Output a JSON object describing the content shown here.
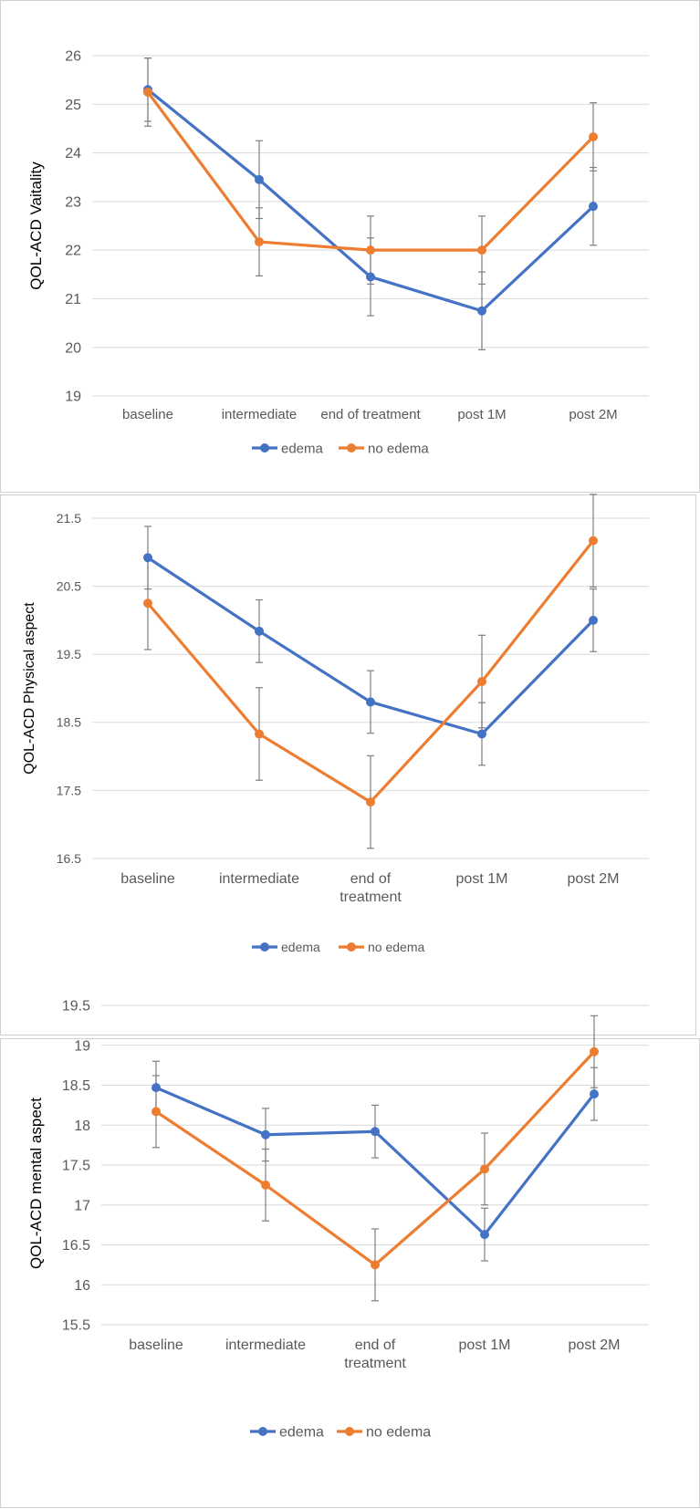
{
  "chart_data": [
    {
      "type": "line",
      "ylabel": "QOL-ACD  Vaitality",
      "categories": [
        [
          "baseline"
        ],
        [
          "intermediate"
        ],
        [
          "end of treatment"
        ],
        [
          "post 1M"
        ],
        [
          "post 2M"
        ]
      ],
      "ylim": [
        19,
        26
      ],
      "yticks": [
        19,
        20,
        21,
        22,
        23,
        24,
        25,
        26
      ],
      "ytick_labels": [
        "19",
        "20",
        "21",
        "22",
        "23",
        "24",
        "25",
        "26"
      ],
      "grid": true,
      "legend_position": "bottom",
      "series": [
        {
          "name": "edema",
          "color": "#4472C4",
          "values": [
            25.3,
            23.45,
            21.45,
            20.75,
            22.9
          ],
          "errors": [
            0.65,
            0.8,
            0.8,
            0.8,
            0.8
          ]
        },
        {
          "name": "no edema",
          "color": "#ED7D31",
          "values": [
            25.25,
            22.17,
            22.0,
            22.0,
            24.33
          ],
          "errors": [
            0.7,
            0.7,
            0.7,
            0.7,
            0.7
          ]
        }
      ]
    },
    {
      "type": "line",
      "ylabel": "QOL-ACD Physical aspect",
      "categories": [
        [
          "baseline"
        ],
        [
          "intermediate"
        ],
        [
          "end of",
          "treatment"
        ],
        [
          "post 1M"
        ],
        [
          "post 2M"
        ]
      ],
      "ylim": [
        16.5,
        21.5
      ],
      "yticks": [
        16.5,
        17.5,
        18.5,
        19.5,
        20.5,
        21.5
      ],
      "ytick_labels": [
        "16.5",
        "17.5",
        "18.5",
        "19.5",
        "20.5",
        "21.5"
      ],
      "grid": true,
      "legend_position": "bottom",
      "series": [
        {
          "name": "edema",
          "color": "#4472C4",
          "values": [
            20.92,
            19.84,
            18.8,
            18.33,
            20.0
          ],
          "errors": [
            0.46,
            0.46,
            0.46,
            0.46,
            0.46
          ]
        },
        {
          "name": "no edema",
          "color": "#ED7D31",
          "values": [
            20.25,
            18.33,
            17.33,
            19.1,
            21.17
          ],
          "errors": [
            0.68,
            0.68,
            0.68,
            0.68,
            0.68
          ]
        }
      ]
    },
    {
      "type": "line",
      "ylabel": "QOL-ACD mental aspect",
      "categories": [
        [
          "baseline"
        ],
        [
          "intermediate"
        ],
        [
          "end of",
          "treatment"
        ],
        [
          "post 1M"
        ],
        [
          "post 2M"
        ]
      ],
      "ylim": [
        15.5,
        19.5
      ],
      "yticks": [
        15.5,
        16,
        16.5,
        17,
        17.5,
        18,
        18.5,
        19,
        19.5
      ],
      "ytick_labels": [
        "15.5",
        "16",
        "16.5",
        "17",
        "17.5",
        "18",
        "18.5",
        "19",
        "19.5"
      ],
      "grid": true,
      "legend_position": "bottom",
      "series": [
        {
          "name": "edema",
          "color": "#4472C4",
          "values": [
            18.47,
            17.88,
            17.92,
            16.63,
            18.39
          ],
          "errors": [
            0.33,
            0.33,
            0.33,
            0.33,
            0.33
          ]
        },
        {
          "name": "no edema",
          "color": "#ED7D31",
          "values": [
            18.17,
            17.25,
            16.25,
            17.45,
            18.92
          ],
          "errors": [
            0.45,
            0.45,
            0.45,
            0.45,
            0.45
          ]
        }
      ]
    }
  ]
}
